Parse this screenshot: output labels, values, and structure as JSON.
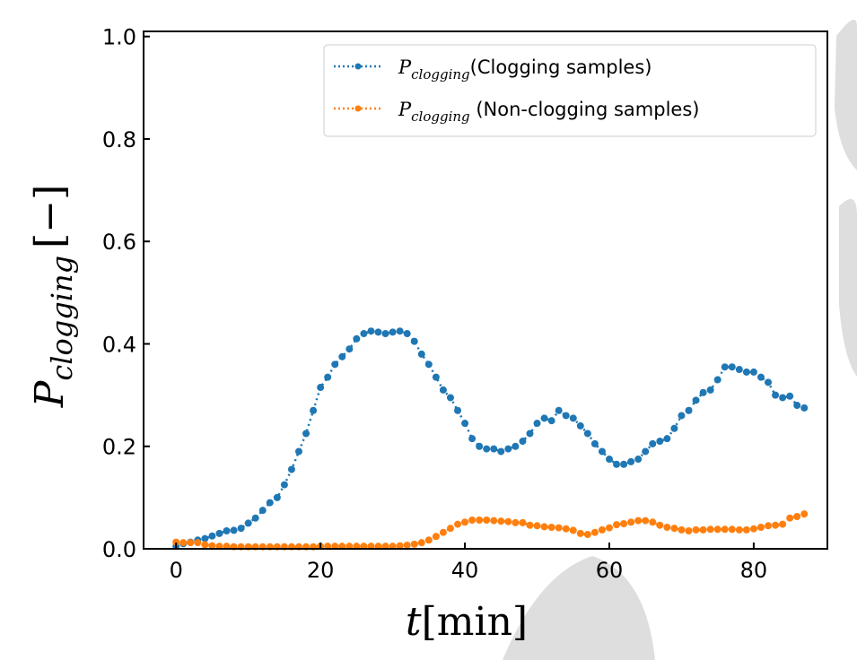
{
  "chart_data": {
    "type": "line",
    "title": "",
    "xlabel": {
      "var": "t",
      "unit": "[min]"
    },
    "ylabel": {
      "var": "P",
      "sub": "clogging",
      "unit": "[−]"
    },
    "xlim": [
      -4.5,
      90.2
    ],
    "ylim": [
      0,
      1.01
    ],
    "xticks": [
      0,
      20,
      40,
      60,
      80
    ],
    "xtick_labels": [
      "0",
      "20",
      "40",
      "60",
      "80"
    ],
    "yticks": [
      0,
      0.2,
      0.4,
      0.6,
      0.8,
      1.0
    ],
    "ytick_labels": [
      "0.0",
      "0.2",
      "0.4",
      "0.6",
      "0.8",
      "1.0"
    ],
    "grid": false,
    "legend_placement": "top-right",
    "x": [
      0,
      1,
      2,
      3,
      4,
      5,
      6,
      7,
      8,
      9,
      10,
      11,
      12,
      13,
      14,
      15,
      16,
      17,
      18,
      19,
      20,
      21,
      22,
      23,
      24,
      25,
      26,
      27,
      28,
      29,
      30,
      31,
      32,
      33,
      34,
      35,
      36,
      37,
      38,
      39,
      40,
      41,
      42,
      43,
      44,
      45,
      46,
      47,
      48,
      49,
      50,
      51,
      52,
      53,
      54,
      55,
      56,
      57,
      58,
      59,
      60,
      61,
      62,
      63,
      64,
      65,
      66,
      67,
      68,
      69,
      70,
      71,
      72,
      73,
      74,
      75,
      76,
      77,
      78,
      79,
      80,
      81,
      82,
      83,
      84,
      85,
      86,
      87
    ],
    "series": [
      {
        "name": "Clogging samples",
        "legend_var": "P",
        "legend_sub": "clogging",
        "legend_text": "(Clogging samples)",
        "color": "#1f77b4",
        "values": [
          0.005,
          0.01,
          0.013,
          0.017,
          0.02,
          0.025,
          0.03,
          0.035,
          0.036,
          0.04,
          0.05,
          0.06,
          0.075,
          0.09,
          0.1,
          0.125,
          0.155,
          0.19,
          0.225,
          0.27,
          0.315,
          0.335,
          0.36,
          0.375,
          0.39,
          0.41,
          0.42,
          0.425,
          0.423,
          0.42,
          0.423,
          0.425,
          0.42,
          0.405,
          0.38,
          0.36,
          0.335,
          0.31,
          0.295,
          0.27,
          0.245,
          0.215,
          0.2,
          0.195,
          0.195,
          0.19,
          0.195,
          0.2,
          0.21,
          0.225,
          0.245,
          0.255,
          0.25,
          0.27,
          0.26,
          0.255,
          0.24,
          0.225,
          0.205,
          0.19,
          0.175,
          0.165,
          0.165,
          0.17,
          0.175,
          0.19,
          0.205,
          0.21,
          0.215,
          0.235,
          0.26,
          0.27,
          0.29,
          0.305,
          0.31,
          0.33,
          0.355,
          0.355,
          0.35,
          0.345,
          0.345,
          0.335,
          0.325,
          0.3,
          0.295,
          0.298,
          0.28,
          0.275
        ]
      },
      {
        "name": "Non-clogging samples",
        "legend_var": "P",
        "legend_sub": "clogging",
        "legend_text": " (Non-clogging samples)",
        "color": "#ff7f0e",
        "values": [
          0.013,
          0.012,
          0.012,
          0.012,
          0.008,
          0.006,
          0.005,
          0.005,
          0.004,
          0.004,
          0.004,
          0.004,
          0.004,
          0.004,
          0.004,
          0.004,
          0.004,
          0.004,
          0.004,
          0.004,
          0.005,
          0.005,
          0.005,
          0.005,
          0.005,
          0.005,
          0.005,
          0.005,
          0.005,
          0.005,
          0.005,
          0.006,
          0.007,
          0.009,
          0.012,
          0.017,
          0.024,
          0.032,
          0.04,
          0.048,
          0.052,
          0.056,
          0.056,
          0.056,
          0.055,
          0.054,
          0.053,
          0.051,
          0.051,
          0.046,
          0.045,
          0.043,
          0.042,
          0.041,
          0.039,
          0.036,
          0.03,
          0.028,
          0.032,
          0.037,
          0.041,
          0.047,
          0.049,
          0.052,
          0.055,
          0.055,
          0.052,
          0.046,
          0.042,
          0.04,
          0.037,
          0.035,
          0.037,
          0.037,
          0.038,
          0.038,
          0.038,
          0.038,
          0.037,
          0.037,
          0.039,
          0.042,
          0.045,
          0.046,
          0.048,
          0.06,
          0.063,
          0.068
        ]
      }
    ]
  }
}
